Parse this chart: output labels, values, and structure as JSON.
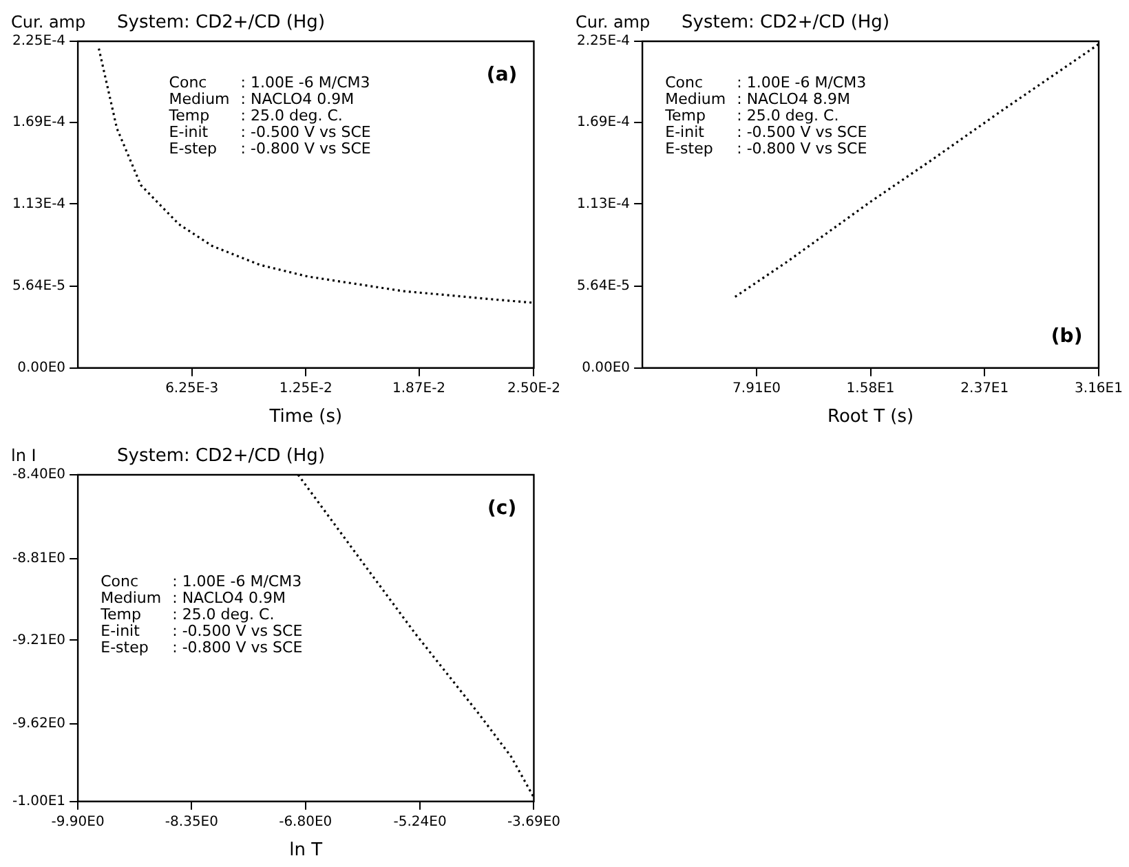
{
  "chart_data": [
    {
      "type": "line",
      "title": "System: CD2+/CD (Hg)",
      "xlabel": "Time (s)",
      "ylabel": "Cur. amp",
      "line_style": "dotted",
      "annotations": [
        "Conc : 1.00E -6 M/CM3",
        "Medium : NACLO4 0.9M",
        "Temp : 25.0 deg. C.",
        "E-init : -0.500 V vs SCE",
        "E-step : -0.800 V vs SCE",
        "(a)"
      ],
      "x": [
        0.00115,
        0.00214,
        0.00345,
        0.00554,
        0.00737,
        0.00998,
        0.0126,
        0.0152,
        0.0178,
        0.0204,
        0.023,
        0.0249
      ],
      "series": [
        {
          "color": "#000000",
          "values": [
            0.00022,
            0.000165,
            0.000126,
            9.9e-05,
            8.4e-05,
            7.1e-05,
            6.3e-05,
            5.8e-05,
            5.3e-05,
            5e-05,
            4.7e-05,
            4.5e-05
          ]
        }
      ],
      "xlim": [
        0,
        0.025
      ],
      "ylim": [
        0,
        0.000225
      ],
      "xticks": [
        {
          "value": 0.00625,
          "label": "6.25E-3"
        },
        {
          "value": 0.0125,
          "label": "1.25E-2"
        },
        {
          "value": 0.0187,
          "label": "1.87E-2"
        },
        {
          "value": 0.025,
          "label": "2.50E-2"
        }
      ],
      "yticks": [
        {
          "value": 0,
          "label": "0.00E0"
        },
        {
          "value": 5.64e-05,
          "label": "5.64E-5"
        },
        {
          "value": 0.000113,
          "label": "1.13E-4"
        },
        {
          "value": 0.000169,
          "label": "1.69E-4"
        },
        {
          "value": 0.000225,
          "label": "2.25E-4"
        }
      ]
    },
    {
      "type": "line",
      "title": "System: CD2+/CD (Hg)",
      "xlabel": "Root T (s)",
      "ylabel": "Cur. amp",
      "line_style": "dotted",
      "annotations": [
        "Conc : 1.00E -6 M/CM3",
        "Medium : NACLO4 8.9M",
        "Temp : 25.0 deg. C.",
        "E-init : -0.500 V vs SCE",
        "E-step : -0.800 V vs SCE",
        "(b)"
      ],
      "x": [
        6.42,
        10,
        15.73,
        20,
        25,
        31.6
      ],
      "series": [
        {
          "color": "#000000",
          "values": [
            4.9e-05,
            7.3e-05,
            0.000114,
            0.000143,
            0.000178,
            0.000223
          ]
        }
      ],
      "xlim": [
        0,
        31.6
      ],
      "ylim": [
        0,
        0.000225
      ],
      "xticks": [
        {
          "value": 7.91,
          "label": "7.91E0"
        },
        {
          "value": 15.8,
          "label": "1.58E1"
        },
        {
          "value": 23.7,
          "label": "2.37E1"
        },
        {
          "value": 31.6,
          "label": "3.16E1"
        }
      ],
      "yticks": [
        {
          "value": 0,
          "label": "0.00E0"
        },
        {
          "value": 5.64e-05,
          "label": "5.64E-5"
        },
        {
          "value": 0.000113,
          "label": "1.13E-4"
        },
        {
          "value": 0.000169,
          "label": "1.69E-4"
        },
        {
          "value": 0.000225,
          "label": "2.25E-4"
        }
      ]
    },
    {
      "type": "line",
      "title": "System: CD2+/CD (Hg)",
      "xlabel": "ln T",
      "ylabel": "ln I",
      "line_style": "dotted",
      "annotations": [
        "Conc : 1.00E -6 M/CM3",
        "Medium : NACLO4 0.9M",
        "Temp : 25.0 deg. C.",
        "E-init : -0.500 V vs SCE",
        "E-step : -0.800 V vs SCE",
        "(c)"
      ],
      "x": [
        -6.9,
        -6.0,
        -5.3,
        -4.44,
        -4.0,
        -3.69
      ],
      "series": [
        {
          "color": "#000000",
          "values": [
            -8.4,
            -8.84,
            -9.18,
            -9.57,
            -9.78,
            -9.98
          ]
        }
      ],
      "xlim": [
        -9.9,
        -3.69
      ],
      "ylim": [
        -10.0,
        -8.4
      ],
      "xticks": [
        {
          "value": -9.9,
          "label": "-9.90E0"
        },
        {
          "value": -8.35,
          "label": "-8.35E0"
        },
        {
          "value": -6.8,
          "label": "-6.80E0"
        },
        {
          "value": -5.24,
          "label": "-5.24E0"
        },
        {
          "value": -3.69,
          "label": "-3.69E0"
        }
      ],
      "yticks": [
        {
          "value": -10.0,
          "label": "-1.00E1"
        },
        {
          "value": -9.62,
          "label": "-9.62E0"
        },
        {
          "value": -9.21,
          "label": "-9.21E0"
        },
        {
          "value": -8.81,
          "label": "-8.81E0"
        },
        {
          "value": -8.4,
          "label": "-8.40E0"
        }
      ]
    }
  ]
}
